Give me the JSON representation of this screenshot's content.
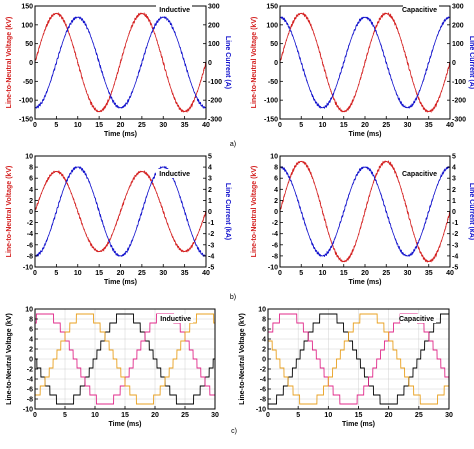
{
  "figure": {
    "row_labels": [
      "a)",
      "b)",
      "c)"
    ],
    "colors": {
      "voltage": "#d42020",
      "current": "#1010cc",
      "phase_a": "#000000",
      "phase_b": "#e02a8a",
      "phase_c": "#e8a020"
    }
  },
  "chart_data": [
    {
      "type": "line",
      "title": "Inductive",
      "xlabel": "Time (ms)",
      "ylabel": "Line-to-Neutral Voltage (kV)",
      "y2label": "Line Current (A)",
      "xlim": [
        0,
        40
      ],
      "ylim": [
        -150,
        150
      ],
      "y2lim": [
        -300,
        300
      ],
      "xticks": [
        0,
        5,
        10,
        15,
        20,
        25,
        30,
        35,
        40
      ],
      "yticks": [
        -150,
        -100,
        -50,
        0,
        50,
        100,
        150
      ],
      "y2ticks": [
        -300,
        -200,
        -100,
        0,
        100,
        200,
        300
      ],
      "grid": false,
      "series": [
        {
          "axis": "left",
          "color": "#d42020",
          "waveform": "sine",
          "amplitude": 130,
          "period_ms": 20,
          "peak_at_ms": 5,
          "x": [
            0,
            5,
            10,
            15,
            20,
            25,
            30,
            35,
            40
          ],
          "y": [
            0,
            130,
            0,
            -130,
            0,
            130,
            0,
            -130,
            0
          ]
        },
        {
          "axis": "right",
          "color": "#1010cc",
          "waveform": "sine",
          "amplitude": 240,
          "period_ms": 20,
          "peak_at_ms": 10,
          "x": [
            0,
            5,
            10,
            15,
            20,
            25,
            30,
            35,
            40
          ],
          "y": [
            -240,
            0,
            240,
            0,
            -240,
            0,
            240,
            0,
            -240
          ]
        }
      ]
    },
    {
      "type": "line",
      "title": "Capacitive",
      "xlabel": "Time (ms)",
      "ylabel": "Line-to-Neutral Voltage (kV)",
      "y2label": "Line Current (A)",
      "xlim": [
        0,
        40
      ],
      "ylim": [
        -150,
        150
      ],
      "y2lim": [
        -300,
        300
      ],
      "xticks": [
        0,
        5,
        10,
        15,
        20,
        25,
        30,
        35,
        40
      ],
      "yticks": [
        -150,
        -100,
        -50,
        0,
        50,
        100,
        150
      ],
      "y2ticks": [
        -300,
        -200,
        -100,
        0,
        100,
        200,
        300
      ],
      "grid": false,
      "series": [
        {
          "axis": "left",
          "color": "#d42020",
          "waveform": "sine",
          "amplitude": 130,
          "period_ms": 20,
          "peak_at_ms": 5,
          "x": [
            0,
            5,
            10,
            15,
            20,
            25,
            30,
            35,
            40
          ],
          "y": [
            0,
            130,
            0,
            -130,
            0,
            130,
            0,
            -130,
            0
          ]
        },
        {
          "axis": "right",
          "color": "#1010cc",
          "waveform": "sine",
          "amplitude": 240,
          "period_ms": 20,
          "peak_at_ms": 0,
          "x": [
            0,
            5,
            10,
            15,
            20,
            25,
            30,
            35,
            40
          ],
          "y": [
            240,
            0,
            -240,
            0,
            240,
            0,
            -240,
            0,
            240
          ]
        }
      ]
    },
    {
      "type": "line",
      "title": "Inductive",
      "xlabel": "Time (ms)",
      "ylabel": "Line-to-Neutral Voltage (kV)",
      "y2label": "Line Current (kA)",
      "xlim": [
        0,
        40
      ],
      "ylim": [
        -10,
        10
      ],
      "y2lim": [
        -5,
        5
      ],
      "xticks": [
        0,
        5,
        10,
        15,
        20,
        25,
        30,
        35,
        40
      ],
      "yticks": [
        -10,
        -8,
        -6,
        -4,
        -2,
        0,
        2,
        4,
        6,
        8,
        10
      ],
      "y2ticks": [
        -5,
        -4,
        -3,
        -2,
        -1,
        0,
        1,
        2,
        3,
        4,
        5
      ],
      "grid": false,
      "series": [
        {
          "axis": "left",
          "color": "#d42020",
          "waveform": "sine",
          "amplitude": 7.2,
          "period_ms": 20,
          "peak_at_ms": 5,
          "x": [
            0,
            5,
            10,
            15,
            20,
            25,
            30,
            35,
            40
          ],
          "y": [
            0,
            7.2,
            0,
            -7.2,
            0,
            7.2,
            0,
            -7.2,
            0
          ]
        },
        {
          "axis": "right",
          "color": "#1010cc",
          "waveform": "sine",
          "amplitude": 4,
          "period_ms": 20,
          "peak_at_ms": 10,
          "x": [
            0,
            5,
            10,
            15,
            20,
            25,
            30,
            35,
            40
          ],
          "y": [
            -4,
            0,
            4,
            0,
            -4,
            0,
            4,
            0,
            -4
          ]
        }
      ]
    },
    {
      "type": "line",
      "title": "Capacitive",
      "xlabel": "Time (ms)",
      "ylabel": "Line-to-Neutral Voltage (kV)",
      "y2label": "Line Current (kA)",
      "xlim": [
        0,
        40
      ],
      "ylim": [
        -10,
        10
      ],
      "y2lim": [
        -5,
        5
      ],
      "xticks": [
        0,
        5,
        10,
        15,
        20,
        25,
        30,
        35,
        40
      ],
      "yticks": [
        -10,
        -8,
        -6,
        -4,
        -2,
        0,
        2,
        4,
        6,
        8,
        10
      ],
      "y2ticks": [
        -5,
        -4,
        -3,
        -2,
        -1,
        0,
        1,
        2,
        3,
        4,
        5
      ],
      "grid": false,
      "series": [
        {
          "axis": "left",
          "color": "#d42020",
          "waveform": "sine",
          "amplitude": 9,
          "period_ms": 20,
          "peak_at_ms": 5,
          "x": [
            0,
            5,
            10,
            15,
            20,
            25,
            30,
            35,
            40
          ],
          "y": [
            0,
            9,
            0,
            -9,
            0,
            9,
            0,
            -9,
            0
          ]
        },
        {
          "axis": "right",
          "color": "#1010cc",
          "waveform": "sine",
          "amplitude": 4,
          "period_ms": 20,
          "peak_at_ms": 0,
          "x": [
            0,
            5,
            10,
            15,
            20,
            25,
            30,
            35,
            40
          ],
          "y": [
            4,
            0,
            -4,
            0,
            4,
            0,
            -4,
            0,
            4
          ]
        }
      ]
    },
    {
      "type": "line",
      "title": "Inductive",
      "xlabel": "Time (ms)",
      "ylabel": "Line-to-Neutral Voltage (kV)",
      "xlim": [
        0,
        30
      ],
      "ylim": [
        -10,
        10
      ],
      "xticks": [
        0,
        5,
        10,
        15,
        20,
        25,
        30
      ],
      "yticks": [
        -10,
        -8,
        -6,
        -4,
        -2,
        0,
        2,
        4,
        6,
        8,
        10
      ],
      "grid": true,
      "series": [
        {
          "color": "#000000",
          "waveform": "staircase",
          "amplitude": 9,
          "period_ms": 20,
          "peak_at_ms": 15,
          "x": [
            0,
            5,
            10,
            15,
            20,
            25,
            30
          ],
          "y": [
            -9,
            0,
            0,
            9,
            0,
            -9,
            0
          ]
        },
        {
          "color": "#e02a8a",
          "waveform": "staircase",
          "amplitude": 9,
          "period_ms": 20,
          "peak_at_ms": 21.67,
          "x": [
            0,
            5,
            10,
            15,
            20,
            25,
            30
          ],
          "y": [
            4.5,
            7.8,
            -4.5,
            -7.8,
            4.5,
            7.8,
            -4.5
          ]
        },
        {
          "color": "#e8a020",
          "waveform": "staircase",
          "amplitude": 9,
          "period_ms": 20,
          "peak_at_ms": 28.33,
          "x": [
            0,
            5,
            10,
            15,
            20,
            25,
            30
          ],
          "y": [
            4.5,
            -7.8,
            4.5,
            0,
            -4.5,
            7.8,
            4.5
          ]
        }
      ]
    },
    {
      "type": "line",
      "title": "Capacitive",
      "xlabel": "Time (ms)",
      "ylabel": "Line-to-Neutral Voltage (kV)",
      "xlim": [
        0,
        30
      ],
      "ylim": [
        -10,
        10
      ],
      "xticks": [
        0,
        5,
        10,
        15,
        20,
        25,
        30
      ],
      "yticks": [
        -10,
        -8,
        -6,
        -4,
        -2,
        0,
        2,
        4,
        6,
        8,
        10
      ],
      "grid": true,
      "series": [
        {
          "color": "#000000",
          "waveform": "staircase",
          "amplitude": 9,
          "period_ms": 20,
          "peak_at_ms": 10,
          "x": [
            0,
            5,
            10,
            15,
            20,
            25,
            30
          ],
          "y": [
            0,
            9,
            0,
            -9,
            0,
            9,
            0
          ]
        },
        {
          "color": "#e02a8a",
          "waveform": "staircase",
          "amplitude": 9,
          "period_ms": 20,
          "peak_at_ms": 3.33,
          "x": [
            0,
            5,
            10,
            15,
            20,
            25,
            30
          ],
          "y": [
            7.8,
            4.5,
            -7.8,
            -4.5,
            7.8,
            4.5,
            -7.8
          ]
        },
        {
          "color": "#e8a020",
          "waveform": "staircase",
          "amplitude": 9,
          "period_ms": 20,
          "peak_at_ms": 16.67,
          "x": [
            0,
            5,
            10,
            15,
            20,
            25,
            30
          ],
          "y": [
            -7.8,
            -4.5,
            7.8,
            4.5,
            -7.8,
            -4.5,
            7.8
          ]
        }
      ]
    }
  ]
}
